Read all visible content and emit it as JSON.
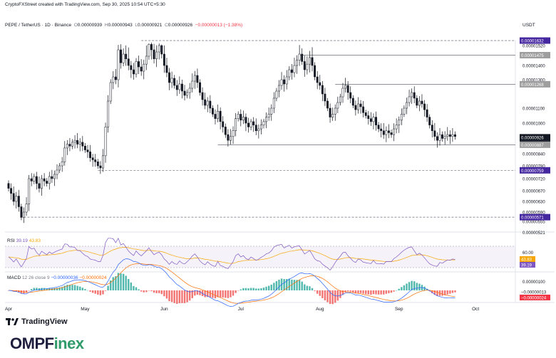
{
  "header": {
    "credit": "CryptoFXStreet created with TradingView.com, Sep 30, 2025 10:54 UTC+5:30",
    "symbol": "PEPE / TetherUS · 1D · Binance",
    "open_label": "O",
    "open": "0.00000939",
    "high_label": "H",
    "high": "0.00000943",
    "low_label": "L",
    "low": "0.00000921",
    "close_label": "C",
    "close": "0.00000926",
    "change": "−0.00000013 (−1.38%)",
    "unit": "USDT"
  },
  "price_axis": {
    "ticks": [
      "0.00001520",
      "0.00001470",
      "0.00001400",
      "0.00001300",
      "0.00001100",
      "0.00001000",
      "0.00000840",
      "0.00000780",
      "0.00000720",
      "0.00000670",
      "0.00000630",
      "0.00000590",
      "0.00000555",
      "0.00000521"
    ],
    "badges": [
      {
        "text": "0.00001632",
        "value": 1.632e-05,
        "bg": "#4527a0",
        "fg": "#ffffff"
      },
      {
        "text": "0.00001475",
        "value": 1.475e-05,
        "bg": "#9e9e9e",
        "fg": "#ffffff"
      },
      {
        "text": "0.00001268",
        "value": 1.268e-05,
        "bg": "#9e9e9e",
        "fg": "#ffffff"
      },
      {
        "text": "0.00000926",
        "value": 9.26e-06,
        "bg": "#131722",
        "fg": "#ffffff"
      },
      {
        "text": "13:05:29",
        "value": 9e-06,
        "bg": "#131722",
        "fg": "#ffffff"
      },
      {
        "text": "0.00000887",
        "value": 8.87e-06,
        "bg": "#9e9e9e",
        "fg": "#ffffff"
      },
      {
        "text": "0.00000759",
        "value": 7.59e-06,
        "bg": "#4527a0",
        "fg": "#ffffff"
      },
      {
        "text": "0.00000571",
        "value": 5.71e-06,
        "bg": "#4527a0",
        "fg": "#ffffff"
      }
    ]
  },
  "levels": [
    {
      "value": 1.632e-05,
      "style": "dashed",
      "from": "May 23"
    },
    {
      "value": 1.475e-05,
      "style": "solid",
      "from": "Jul 24"
    },
    {
      "value": 1.268e-05,
      "style": "solid",
      "from": "Aug 7"
    },
    {
      "value": 8.87e-06,
      "style": "solid",
      "from": "Jun 22"
    },
    {
      "value": 7.59e-06,
      "style": "dashed",
      "from": "May 6"
    },
    {
      "value": 5.71e-06,
      "style": "dashed",
      "from": "Apr 7"
    }
  ],
  "rsi": {
    "label": "RSI",
    "value": "39.19",
    "ma": "43.83",
    "ticks": [
      "60.00"
    ],
    "badges": [
      {
        "text": "43.83",
        "bg": "#f7a600"
      },
      {
        "text": "39.19",
        "bg": "#7e57c2"
      }
    ]
  },
  "macd": {
    "label": "MACD",
    "params": "12 26 close 9",
    "v1": "−0.00000036",
    "v2": "−0.00000024",
    "ticks": [
      "0.00000100"
    ],
    "badges": [
      {
        "text": "−0.00000013",
        "bg": "#ffffff",
        "fg": "#131722"
      },
      {
        "text": "−0.00000024",
        "bg": "#f23645",
        "fg": "#ffffff"
      }
    ]
  },
  "time_axis": [
    "Apr",
    "May",
    "Jun",
    "Jul",
    "Aug",
    "Sep",
    "Oct"
  ],
  "footer": {
    "tradingview": "TradingView",
    "brand_a": "OMPF",
    "brand_b": "inex"
  },
  "colors": {
    "up": "#ffffff",
    "down": "#131722",
    "rsi": "#7e57c2",
    "rsi_ma": "#f7a600",
    "macd": "#2962ff",
    "signal": "#ff6d00",
    "hist_up": "#26a69a",
    "hist_down": "#ef5350"
  },
  "chart_data": {
    "type": "candlestick",
    "x_start": "Apr 1",
    "interval": "1D",
    "ylim": [
      5.2e-06,
      1.65e-05
    ],
    "close": [
      6.8e-06,
      6.6e-06,
      6.3e-06,
      6.5e-06,
      6.1e-06,
      5.7e-06,
      5.9e-06,
      6.2e-06,
      7.2e-06,
      7.1e-06,
      7.3e-06,
      7e-06,
      6.8e-06,
      7.2e-06,
      7.1e-06,
      7e-06,
      7.3e-06,
      7.2e-06,
      7.4e-06,
      7.6e-06,
      7.8e-06,
      8e-06,
      8.7e-06,
      8.9e-06,
      8.8e-06,
      9e-06,
      9.1e-06,
      8.9e-06,
      9e-06,
      8.8e-06,
      8.6e-06,
      8.5e-06,
      8.2e-06,
      8.1e-06,
      8e-06,
      7.8e-06,
      7.7e-06,
      8.3e-06,
      9.8e-06,
      1.15e-05,
      1.28e-05,
      1.32e-05,
      1.3e-05,
      1.5e-05,
      1.42e-05,
      1.48e-05,
      1.45e-05,
      1.4e-05,
      1.37e-05,
      1.34e-05,
      1.43e-05,
      1.39e-05,
      1.36e-05,
      1.41e-05,
      1.47e-05,
      1.55e-05,
      1.5e-05,
      1.45e-05,
      1.49e-05,
      1.52e-05,
      1.48e-05,
      1.4e-05,
      1.35e-05,
      1.28e-05,
      1.31e-05,
      1.26e-05,
      1.23e-05,
      1.27e-05,
      1.22e-05,
      1.19e-05,
      1.21e-05,
      1.24e-05,
      1.29e-05,
      1.33e-05,
      1.28e-05,
      1.21e-05,
      1.16e-05,
      1.12e-05,
      1.15e-05,
      1.1e-05,
      1.06e-05,
      1.03e-05,
      1.08e-05,
      1.01e-05,
      9.8e-06,
      9.4e-06,
      9.1e-06,
      9.3e-06,
      9.6e-06,
      1.03e-05,
      1.06e-05,
      1.02e-05,
      1.04e-05,
      1e-05,
      9.8e-06,
      1.01e-05,
      9.9e-06,
      9.6e-06,
      9.7e-06,
      9.9e-06,
      1.01e-05,
      1.04e-05,
      1.06e-05,
      1.1e-05,
      1.17e-05,
      1.22e-05,
      1.26e-05,
      1.3e-05,
      1.27e-05,
      1.32e-05,
      1.37e-05,
      1.35e-05,
      1.4e-05,
      1.44e-05,
      1.48e-05,
      1.43e-05,
      1.37e-05,
      1.41e-05,
      1.46e-05,
      1.4e-05,
      1.32e-05,
      1.28e-05,
      1.26e-05,
      1.2e-05,
      1.15e-05,
      1.1e-05,
      1.04e-05,
      1.06e-05,
      1.1e-05,
      1.14e-05,
      1.18e-05,
      1.24e-05,
      1.26e-05,
      1.21e-05,
      1.17e-05,
      1.12e-05,
      1.09e-05,
      1.13e-05,
      1.11e-05,
      1.07e-05,
      1.05e-05,
      1.03e-05,
      1.01e-05,
      1.04e-05,
      9.9e-06,
      9.7e-06,
      9.6e-06,
      9.4e-06,
      9.6e-06,
      9.5e-06,
      9.4e-06,
      9.7e-06,
      9.9e-06,
      1.02e-05,
      1.06e-05,
      1.1e-05,
      1.14e-05,
      1.18e-05,
      1.21e-05,
      1.17e-05,
      1.12e-05,
      1.15e-05,
      1.13e-05,
      1.09e-05,
      1.04e-05,
      9.9e-06,
      9.6e-06,
      9.3e-06,
      9.1e-06,
      9.4e-06,
      9.2e-06,
      9.3e-06,
      9.4e-06,
      9.3e-06,
      9.4e-06,
      9.3e-06
    ]
  }
}
